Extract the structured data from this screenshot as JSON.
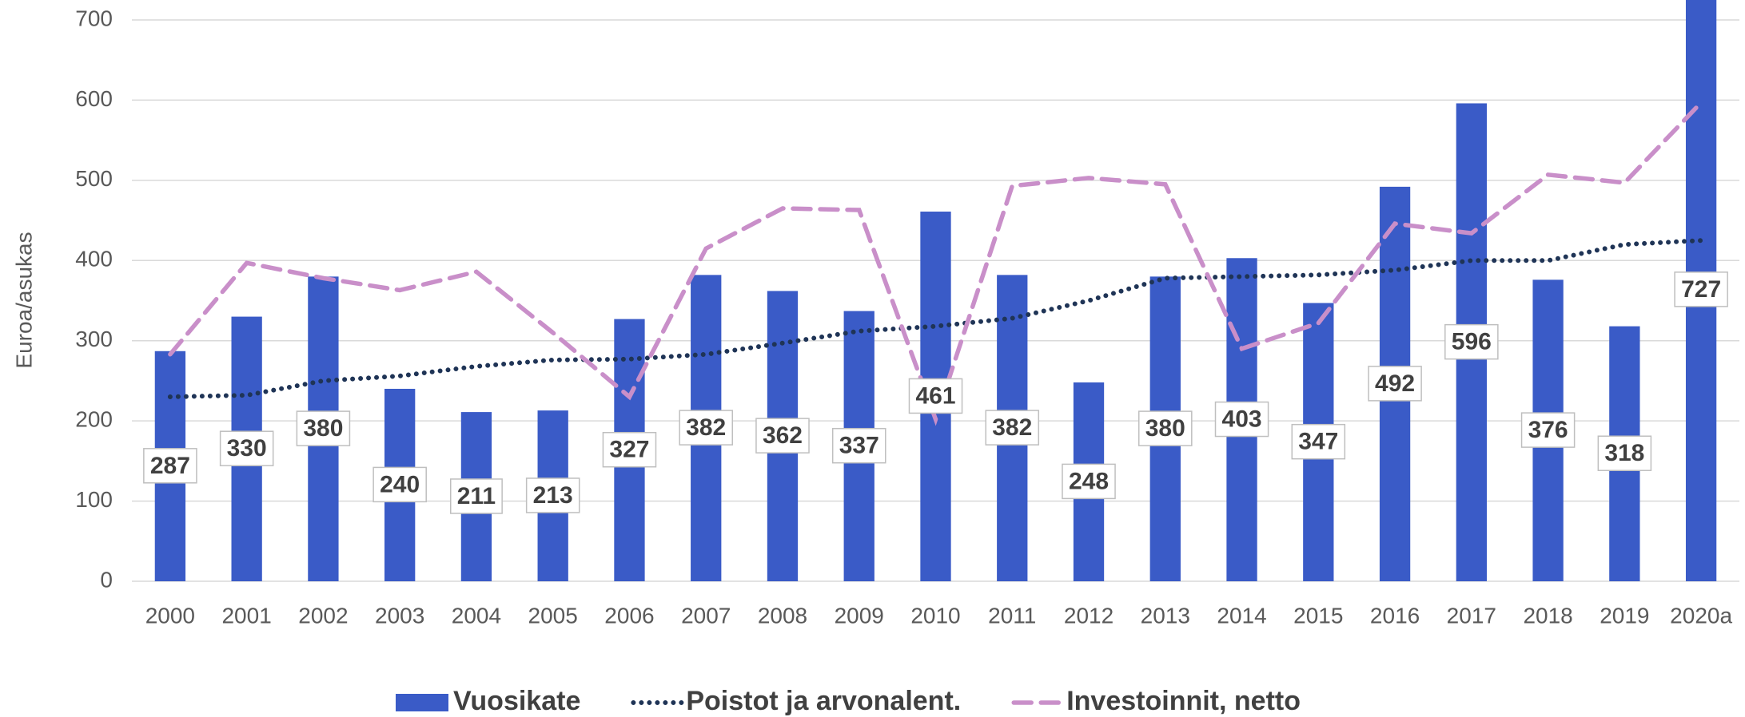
{
  "chart_data": {
    "type": "bar",
    "y_label": "Euroa/asukas",
    "categories": [
      "2000",
      "2001",
      "2002",
      "2003",
      "2004",
      "2005",
      "2006",
      "2007",
      "2008",
      "2009",
      "2010",
      "2011",
      "2012",
      "2013",
      "2014",
      "2015",
      "2016",
      "2017",
      "2018",
      "2019",
      "2020a"
    ],
    "series": [
      {
        "name": "Vuosikate",
        "type": "bar",
        "color": "#3a5bc7",
        "data_labels": true,
        "values": [
          287,
          330,
          380,
          240,
          211,
          213,
          327,
          382,
          362,
          337,
          461,
          382,
          248,
          380,
          403,
          347,
          492,
          596,
          376,
          318,
          727
        ]
      },
      {
        "name": "Poistot ja arvonalent.",
        "type": "line",
        "style": "dotted",
        "color": "#1f3456",
        "values": [
          230,
          232,
          250,
          256,
          268,
          276,
          277,
          283,
          297,
          312,
          318,
          328,
          350,
          378,
          380,
          382,
          388,
          400,
          400,
          420,
          425
        ]
      },
      {
        "name": "Investoinnit, netto",
        "type": "line",
        "style": "dashed",
        "color": "#c98fc9",
        "values": [
          283,
          397,
          378,
          363,
          386,
          310,
          230,
          415,
          465,
          463,
          202,
          493,
          503,
          495,
          290,
          322,
          446,
          434,
          507,
          497,
          597
        ]
      }
    ],
    "ylim": [
      0,
      700
    ],
    "yticks": [
      0,
      100,
      200,
      300,
      400,
      500,
      600,
      700
    ],
    "grid": true,
    "legend": "bottom"
  }
}
